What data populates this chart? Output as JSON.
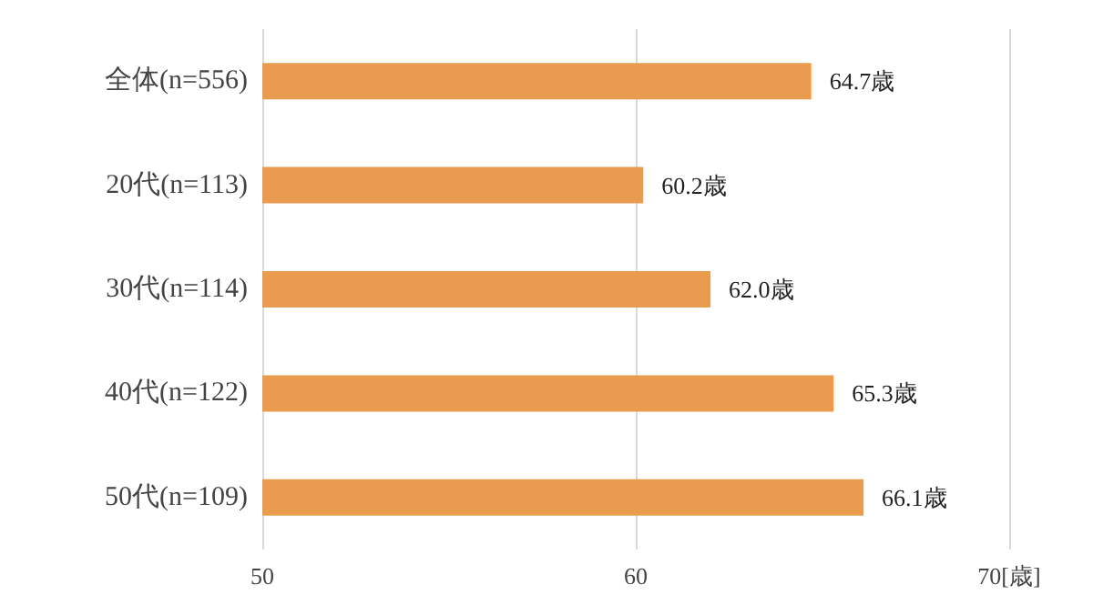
{
  "chart_data": {
    "type": "bar",
    "orientation": "horizontal",
    "categories": [
      "全体(n=556)",
      "20代(n=113)",
      "30代(n=114)",
      "40代(n=122)",
      "50代(n=109)"
    ],
    "values": [
      64.7,
      60.2,
      62.0,
      65.3,
      66.1
    ],
    "value_labels": [
      "64.7歳",
      "60.2歳",
      "62.0歳",
      "65.3歳",
      "66.1歳"
    ],
    "color": "#e99c4f",
    "xlim": [
      50,
      70
    ],
    "xticks": [
      50,
      60,
      {
        "value": 70,
        "label": "70[歳]"
      }
    ],
    "grid": "x"
  }
}
